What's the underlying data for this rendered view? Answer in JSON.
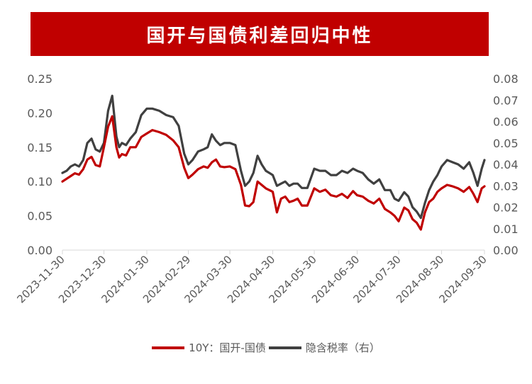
{
  "title": "国开与国债利差回归中性",
  "colors": {
    "title_bg": "#c00000",
    "series1": "#c00000",
    "series2": "#404040",
    "axis": "#d9d9d9",
    "text": "#595959"
  },
  "chart_data": {
    "type": "line",
    "title": "国开与国债利差回归中性",
    "x_ticks": [
      "2023-11-30",
      "2023-12-30",
      "2024-01-30",
      "2024-02-29",
      "2024-03-30",
      "2024-04-30",
      "2024-05-30",
      "2024-06-30",
      "2024-07-30",
      "2024-08-30",
      "2024-09-30"
    ],
    "y_left": {
      "ticks": [
        "0.00",
        "0.05",
        "0.10",
        "0.15",
        "0.20",
        "0.25"
      ],
      "range": [
        0,
        0.25
      ]
    },
    "y_right": {
      "ticks": [
        "0.00",
        "0.01",
        "0.02",
        "0.03",
        "0.04",
        "0.05",
        "0.06",
        "0.07",
        "0.08"
      ],
      "range": [
        0,
        0.08
      ]
    },
    "legend_position": "bottom",
    "series": [
      {
        "name": "10Y：国开-国债",
        "axis": "left",
        "x": [
          "2023-11-30",
          "2023-12-03",
          "2023-12-06",
          "2023-12-09",
          "2023-12-12",
          "2023-12-15",
          "2023-12-18",
          "2023-12-21",
          "2023-12-24",
          "2023-12-27",
          "2023-12-30",
          "2024-01-02",
          "2024-01-05",
          "2024-01-08",
          "2024-01-10",
          "2024-01-12",
          "2024-01-15",
          "2024-01-18",
          "2024-01-22",
          "2024-01-26",
          "2024-01-30",
          "2024-02-03",
          "2024-02-08",
          "2024-02-13",
          "2024-02-18",
          "2024-02-22",
          "2024-02-26",
          "2024-02-29",
          "2024-03-03",
          "2024-03-07",
          "2024-03-11",
          "2024-03-14",
          "2024-03-17",
          "2024-03-20",
          "2024-03-23",
          "2024-03-26",
          "2024-03-30",
          "2024-04-03",
          "2024-04-07",
          "2024-04-10",
          "2024-04-13",
          "2024-04-16",
          "2024-04-19",
          "2024-04-22",
          "2024-04-25",
          "2024-04-30",
          "2024-05-03",
          "2024-05-06",
          "2024-05-09",
          "2024-05-12",
          "2024-05-15",
          "2024-05-18",
          "2024-05-21",
          "2024-05-25",
          "2024-05-30",
          "2024-06-03",
          "2024-06-07",
          "2024-06-11",
          "2024-06-15",
          "2024-06-19",
          "2024-06-23",
          "2024-06-27",
          "2024-06-30",
          "2024-07-04",
          "2024-07-08",
          "2024-07-12",
          "2024-07-16",
          "2024-07-20",
          "2024-07-24",
          "2024-07-27",
          "2024-07-30",
          "2024-08-03",
          "2024-08-06",
          "2024-08-09",
          "2024-08-12",
          "2024-08-15",
          "2024-08-18",
          "2024-08-21",
          "2024-08-24",
          "2024-08-27",
          "2024-08-30",
          "2024-09-03",
          "2024-09-07",
          "2024-09-11",
          "2024-09-15",
          "2024-09-19",
          "2024-09-22",
          "2024-09-25",
          "2024-09-28",
          "2024-09-30"
        ],
        "y": [
          0.1,
          0.104,
          0.108,
          0.112,
          0.11,
          0.118,
          0.132,
          0.136,
          0.124,
          0.122,
          0.15,
          0.18,
          0.195,
          0.15,
          0.135,
          0.14,
          0.138,
          0.15,
          0.15,
          0.165,
          0.17,
          0.175,
          0.172,
          0.168,
          0.16,
          0.15,
          0.12,
          0.105,
          0.11,
          0.118,
          0.122,
          0.12,
          0.128,
          0.132,
          0.122,
          0.121,
          0.122,
          0.118,
          0.095,
          0.065,
          0.064,
          0.07,
          0.1,
          0.095,
          0.09,
          0.085,
          0.055,
          0.075,
          0.078,
          0.07,
          0.072,
          0.075,
          0.065,
          0.065,
          0.09,
          0.085,
          0.088,
          0.08,
          0.078,
          0.082,
          0.076,
          0.086,
          0.08,
          0.078,
          0.072,
          0.068,
          0.075,
          0.06,
          0.055,
          0.05,
          0.042,
          0.062,
          0.058,
          0.045,
          0.04,
          0.03,
          0.055,
          0.07,
          0.075,
          0.085,
          0.09,
          0.095,
          0.093,
          0.09,
          0.085,
          0.092,
          0.082,
          0.07,
          0.09,
          0.093
        ]
      },
      {
        "name": "隐含税率（右）",
        "axis": "right",
        "x": [
          "2023-11-30",
          "2023-12-03",
          "2023-12-06",
          "2023-12-09",
          "2023-12-12",
          "2023-12-15",
          "2023-12-18",
          "2023-12-21",
          "2023-12-24",
          "2023-12-27",
          "2023-12-30",
          "2024-01-02",
          "2024-01-05",
          "2024-01-08",
          "2024-01-10",
          "2024-01-12",
          "2024-01-15",
          "2024-01-18",
          "2024-01-22",
          "2024-01-26",
          "2024-01-30",
          "2024-02-03",
          "2024-02-08",
          "2024-02-13",
          "2024-02-18",
          "2024-02-22",
          "2024-02-26",
          "2024-02-29",
          "2024-03-03",
          "2024-03-07",
          "2024-03-11",
          "2024-03-14",
          "2024-03-17",
          "2024-03-20",
          "2024-03-23",
          "2024-03-26",
          "2024-03-30",
          "2024-04-03",
          "2024-04-07",
          "2024-04-10",
          "2024-04-13",
          "2024-04-16",
          "2024-04-19",
          "2024-04-22",
          "2024-04-25",
          "2024-04-30",
          "2024-05-03",
          "2024-05-06",
          "2024-05-09",
          "2024-05-12",
          "2024-05-15",
          "2024-05-18",
          "2024-05-21",
          "2024-05-25",
          "2024-05-30",
          "2024-06-03",
          "2024-06-07",
          "2024-06-11",
          "2024-06-15",
          "2024-06-19",
          "2024-06-23",
          "2024-06-27",
          "2024-06-30",
          "2024-07-04",
          "2024-07-08",
          "2024-07-12",
          "2024-07-16",
          "2024-07-20",
          "2024-07-24",
          "2024-07-27",
          "2024-07-30",
          "2024-08-03",
          "2024-08-06",
          "2024-08-09",
          "2024-08-12",
          "2024-08-15",
          "2024-08-18",
          "2024-08-21",
          "2024-08-24",
          "2024-08-27",
          "2024-08-30",
          "2024-09-03",
          "2024-09-07",
          "2024-09-11",
          "2024-09-15",
          "2024-09-19",
          "2024-09-22",
          "2024-09-25",
          "2024-09-28",
          "2024-09-30"
        ],
        "y": [
          0.036,
          0.037,
          0.039,
          0.04,
          0.039,
          0.042,
          0.05,
          0.052,
          0.047,
          0.046,
          0.05,
          0.065,
          0.072,
          0.053,
          0.048,
          0.05,
          0.049,
          0.052,
          0.055,
          0.063,
          0.066,
          0.066,
          0.065,
          0.063,
          0.062,
          0.058,
          0.045,
          0.04,
          0.042,
          0.046,
          0.047,
          0.048,
          0.054,
          0.051,
          0.049,
          0.05,
          0.05,
          0.049,
          0.037,
          0.03,
          0.032,
          0.036,
          0.044,
          0.04,
          0.037,
          0.035,
          0.03,
          0.031,
          0.032,
          0.03,
          0.031,
          0.031,
          0.029,
          0.029,
          0.038,
          0.037,
          0.037,
          0.035,
          0.035,
          0.037,
          0.036,
          0.038,
          0.037,
          0.036,
          0.033,
          0.031,
          0.033,
          0.028,
          0.028,
          0.024,
          0.023,
          0.027,
          0.025,
          0.02,
          0.018,
          0.015,
          0.022,
          0.028,
          0.032,
          0.035,
          0.039,
          0.042,
          0.041,
          0.04,
          0.038,
          0.041,
          0.036,
          0.03,
          0.038,
          0.042
        ]
      }
    ]
  }
}
